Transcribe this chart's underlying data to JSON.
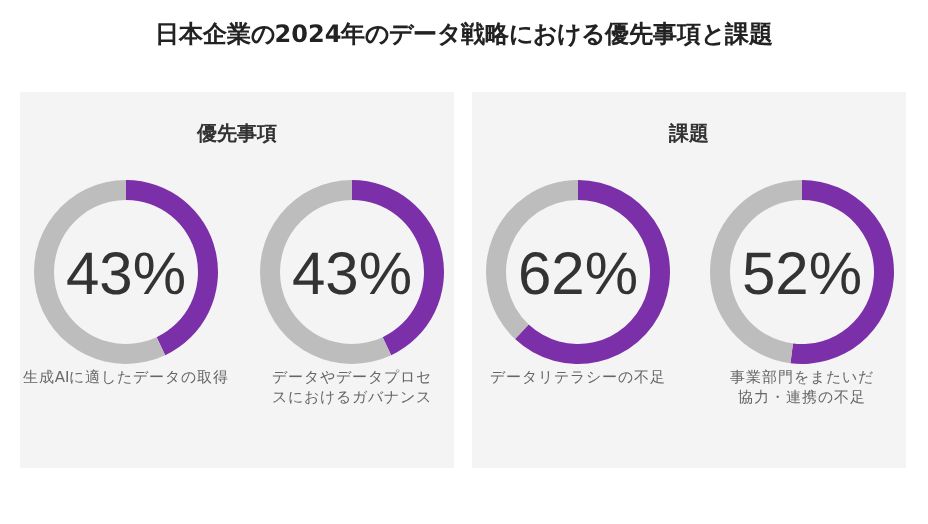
{
  "chart_data": [
    {
      "type": "other",
      "title": "日本企業の2024年のデータ戦略における優先事項と課題"
    },
    {
      "type": "donut",
      "title": "優先事項",
      "xlabel": "生成AIに適したデータの取得",
      "categories": [
        null,
        null
      ],
      "values": [
        43,
        57
      ],
      "colors": [
        "#7b2fa8",
        "#bdbdbd"
      ],
      "value_labels": [
        "43%",
        null
      ]
    },
    {
      "type": "donut",
      "xlabel": "データやデータプロセスにおけるガバナンス",
      "categories": [
        null,
        null
      ],
      "values": [
        43,
        57
      ],
      "colors": [
        "#7b2fa8",
        "#bdbdbd"
      ],
      "value_labels": [
        "43%",
        null
      ]
    },
    {
      "type": "donut",
      "title": "課題",
      "xlabel": "データリテラシーの不足",
      "categories": [
        null,
        null
      ],
      "values": [
        62,
        38
      ],
      "colors": [
        "#7b2fa8",
        "#bdbdbd"
      ],
      "value_labels": [
        "62%",
        null
      ]
    },
    {
      "type": "donut",
      "xlabel": "事業部門をまたいだ協力・連携の不足",
      "categories": [
        null,
        null
      ],
      "values": [
        52,
        48
      ],
      "colors": [
        "#7b2fa8",
        "#bdbdbd"
      ],
      "value_labels": [
        "52%",
        null
      ]
    }
  ]
}
